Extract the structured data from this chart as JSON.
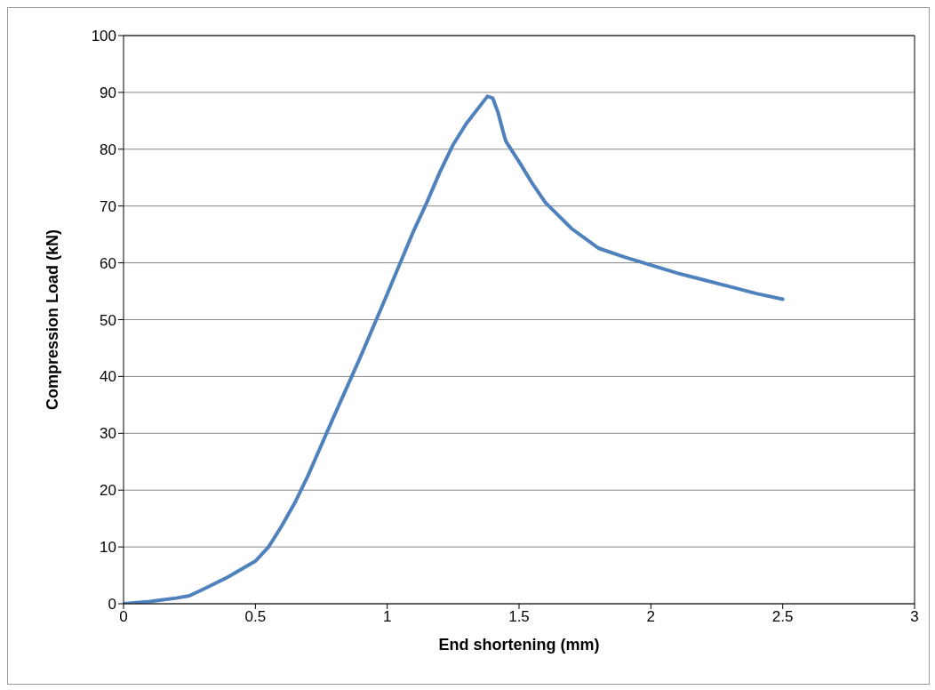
{
  "chart_data": {
    "type": "line",
    "xlabel": "End shortening (mm)",
    "ylabel": "Compression Load (kN)",
    "series": [
      {
        "color": "#4f81bd",
        "x": [
          0,
          0.05,
          0.1,
          0.15,
          0.2,
          0.25,
          0.3,
          0.4,
          0.5,
          0.55,
          0.6,
          0.65,
          0.7,
          0.8,
          0.9,
          1.0,
          1.1,
          1.15,
          1.2,
          1.25,
          1.3,
          1.35,
          1.38,
          1.4,
          1.42,
          1.44,
          1.45,
          1.5,
          1.55,
          1.6,
          1.7,
          1.8,
          1.9,
          2.0,
          2.1,
          2.2,
          2.3,
          2.4,
          2.5
        ],
        "values": [
          0,
          0.2,
          0.4,
          0.7,
          1.0,
          1.4,
          2.5,
          4.8,
          7.5,
          10,
          13.7,
          17.8,
          22.6,
          33.2,
          43.6,
          54.5,
          65.6,
          70.6,
          76,
          80.8,
          84.5,
          87.5,
          89.3,
          89,
          86.5,
          83,
          81.4,
          77.8,
          74,
          70.6,
          66,
          62.6,
          61,
          59.6,
          58.2,
          57,
          55.8,
          54.6,
          53.6
        ]
      }
    ],
    "xlim": [
      0,
      3
    ],
    "xticks": [
      0,
      0.5,
      1,
      1.5,
      2,
      2.5,
      3
    ],
    "ylim": [
      0,
      100
    ],
    "yticks": [
      0,
      10,
      20,
      30,
      40,
      50,
      60,
      70,
      80,
      90,
      100
    ],
    "grid": "y",
    "marker": "none",
    "line_style": "solid"
  }
}
